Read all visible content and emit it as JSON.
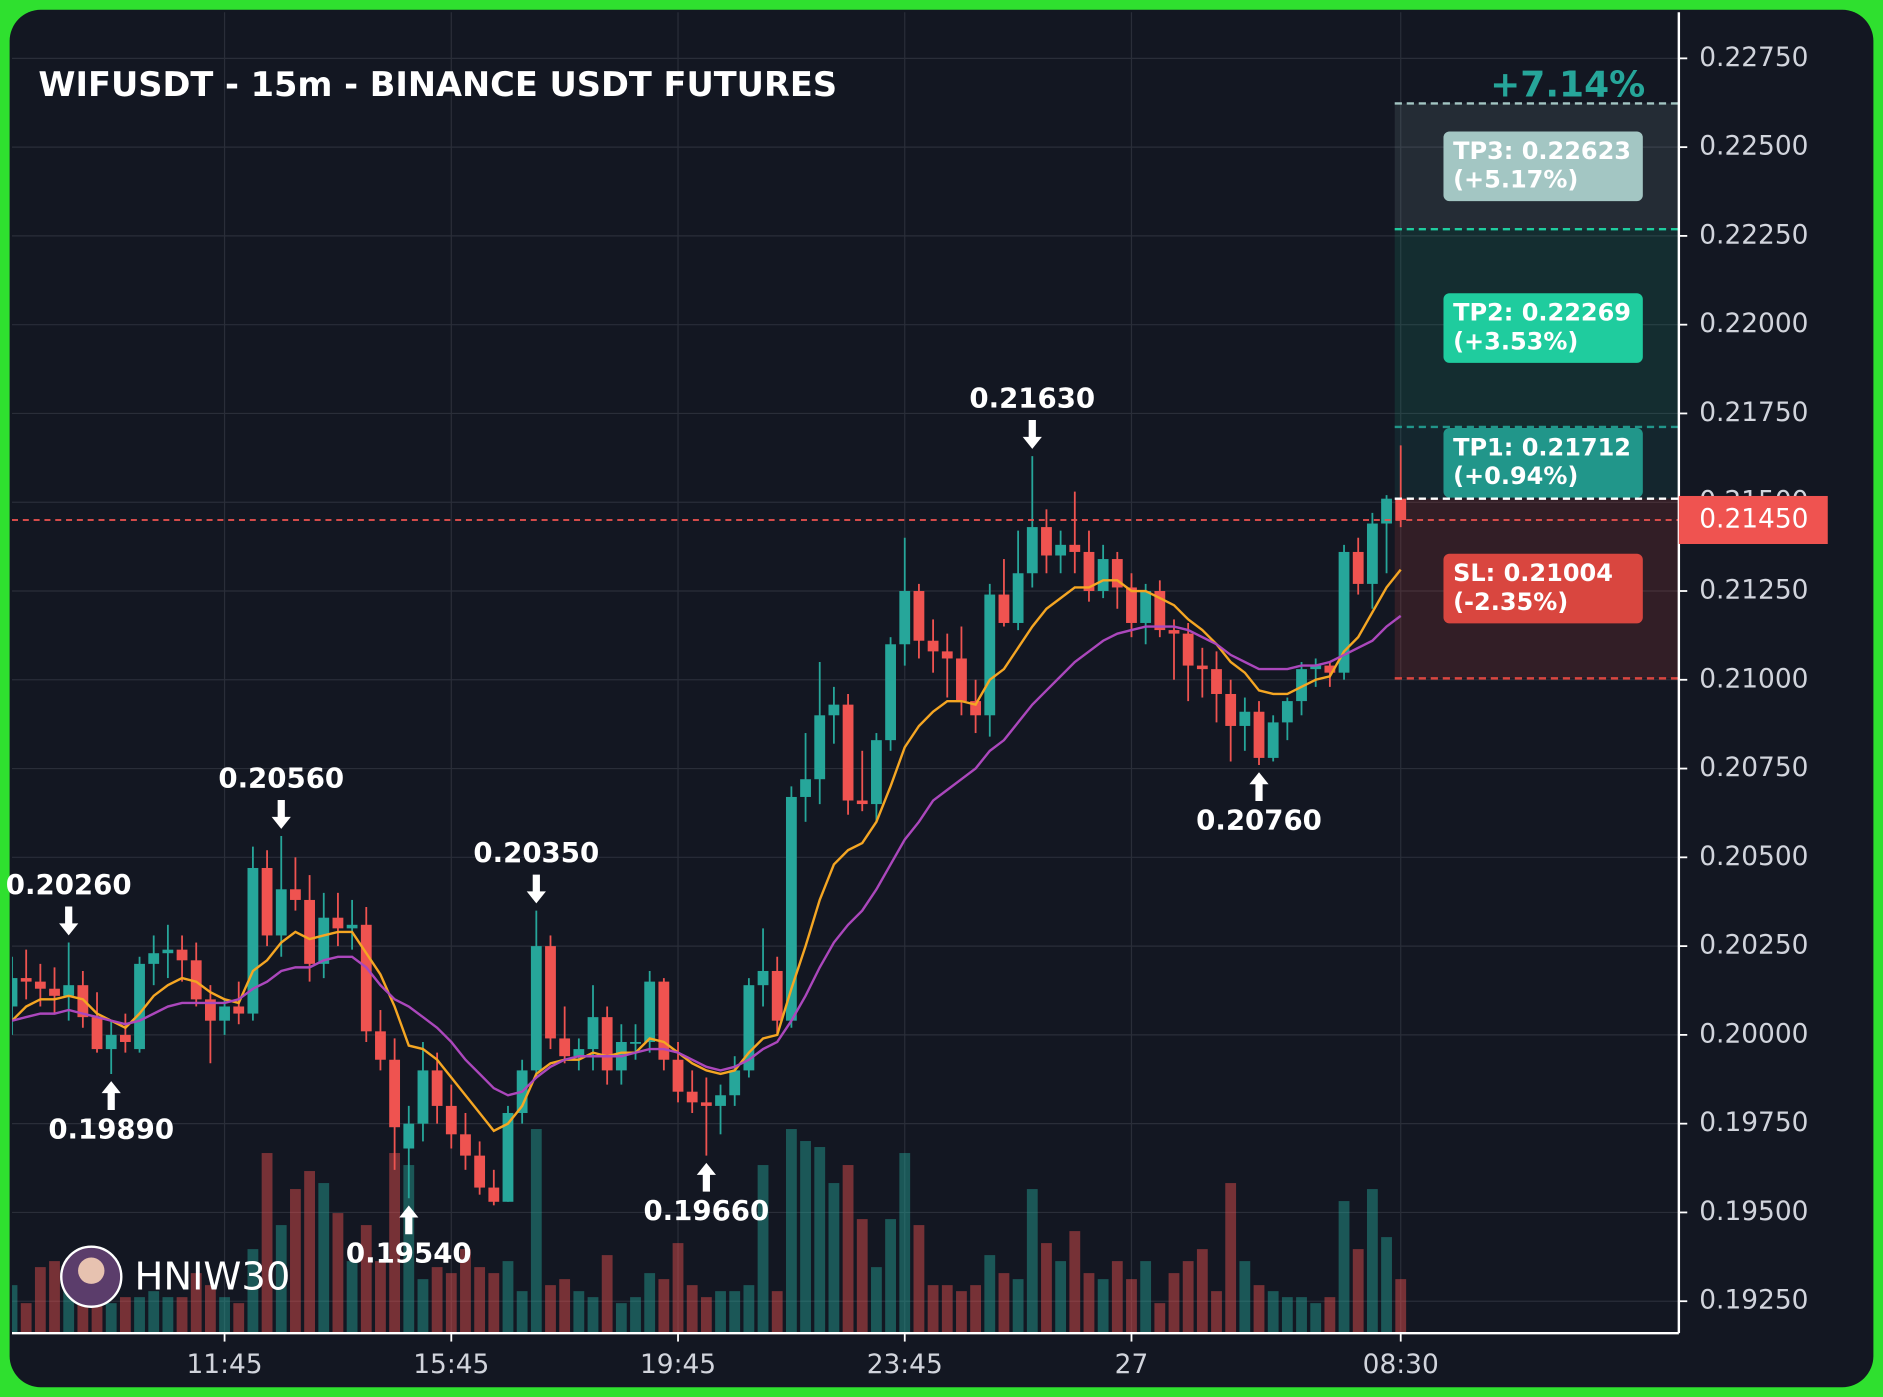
{
  "chart_data": {
    "type": "candlestick",
    "title": "WIFUSDT - 15m - BINANCE USDT FUTURES",
    "categories": [
      null,
      null,
      null,
      null,
      null,
      null,
      null,
      null,
      null,
      null,
      null,
      null,
      null,
      null,
      null,
      "11:45",
      null,
      null,
      null,
      null,
      null,
      null,
      null,
      null,
      null,
      null,
      null,
      null,
      null,
      null,
      null,
      "15:45",
      null,
      null,
      null,
      null,
      null,
      null,
      null,
      null,
      null,
      null,
      null,
      null,
      null,
      null,
      null,
      "19:45",
      null,
      null,
      null,
      null,
      null,
      null,
      null,
      null,
      null,
      null,
      null,
      null,
      null,
      null,
      null,
      "23:45",
      null,
      null,
      null,
      null,
      null,
      null,
      null,
      null,
      null,
      null,
      null,
      null,
      null,
      null,
      null,
      "27",
      null,
      null,
      null,
      null,
      null,
      null,
      null,
      null,
      null,
      null,
      null,
      null,
      null,
      null,
      null,
      null,
      null,
      null,
      "08:30"
    ],
    "open": [
      0.2008,
      0.2016,
      0.2015,
      0.2013,
      0.2011,
      0.2014,
      0.2005,
      0.1996,
      0.2,
      0.1996,
      0.202,
      0.2023,
      0.2024,
      0.2021,
      0.201,
      0.2004,
      0.2008,
      0.2006,
      0.2047,
      0.2028,
      0.2041,
      0.2038,
      0.202,
      0.2033,
      0.203,
      0.2031,
      0.2001,
      0.1993,
      0.1968,
      0.1975,
      0.199,
      0.198,
      0.1972,
      0.1966,
      0.1957,
      0.1953,
      0.1978,
      0.199,
      0.2025,
      0.1999,
      0.1994,
      0.1996,
      0.2005,
      0.199,
      0.1998,
      0.1998,
      0.2015,
      0.1993,
      0.1984,
      0.1981,
      0.198,
      0.1983,
      0.199,
      0.2014,
      0.2018,
      0.2004,
      0.2067,
      0.2072,
      0.209,
      0.2093,
      0.2066,
      0.2065,
      0.2083,
      0.211,
      0.2125,
      0.2111,
      0.2108,
      0.2106,
      0.2094,
      0.209,
      0.2124,
      0.2116,
      0.213,
      0.2143,
      0.2135,
      0.2138,
      0.2136,
      0.2125,
      0.2134,
      0.2126,
      0.2116,
      0.2125,
      0.2114,
      0.2113,
      0.2104,
      0.2103,
      0.2096,
      0.2087,
      0.2091,
      0.2078,
      0.2088,
      0.2094,
      0.2103,
      0.2104,
      0.2102,
      0.2136,
      0.2127,
      0.2144,
      0.2151
    ],
    "high": [
      0.2022,
      0.2024,
      0.202,
      0.2019,
      0.2026,
      0.2018,
      0.2012,
      0.2004,
      0.2006,
      0.2022,
      0.2028,
      0.2031,
      0.2028,
      0.2026,
      0.2014,
      0.201,
      0.2015,
      0.2053,
      0.2052,
      0.2056,
      0.205,
      0.2045,
      0.204,
      0.204,
      0.2038,
      0.2036,
      0.2007,
      0.1999,
      0.198,
      0.1998,
      0.1995,
      0.1986,
      0.1978,
      0.197,
      0.1962,
      0.198,
      0.1993,
      0.2035,
      0.2028,
      0.2008,
      0.1999,
      0.2014,
      0.2008,
      0.2003,
      0.2003,
      0.2018,
      0.2016,
      0.1998,
      0.199,
      0.1988,
      0.1986,
      0.1994,
      0.2016,
      0.203,
      0.2022,
      0.207,
      0.2085,
      0.2105,
      0.2098,
      0.2096,
      0.208,
      0.2085,
      0.2112,
      0.214,
      0.2127,
      0.2117,
      0.2113,
      0.2115,
      0.21,
      0.2127,
      0.2134,
      0.2142,
      0.2163,
      0.2148,
      0.2142,
      0.2153,
      0.2142,
      0.2138,
      0.2136,
      0.213,
      0.2127,
      0.2128,
      0.2117,
      0.2116,
      0.2109,
      0.2108,
      0.21,
      0.2095,
      0.2094,
      0.209,
      0.2095,
      0.2105,
      0.2106,
      0.2105,
      0.2138,
      0.214,
      0.2147,
      0.2152,
      0.2166
    ],
    "low": [
      0.2,
      0.201,
      0.2008,
      0.2006,
      0.2004,
      0.2002,
      0.1995,
      0.1989,
      0.1995,
      0.1995,
      0.2014,
      0.2016,
      0.2015,
      0.2008,
      0.1992,
      0.2,
      0.2003,
      0.2004,
      0.2025,
      0.2022,
      0.2035,
      0.2015,
      0.2016,
      0.2025,
      0.2024,
      0.1998,
      0.199,
      0.1962,
      0.1954,
      0.197,
      0.1975,
      0.1968,
      0.1962,
      0.1955,
      0.1952,
      0.1953,
      0.1975,
      0.1988,
      0.1996,
      0.1992,
      0.199,
      0.199,
      0.1986,
      0.1986,
      0.1993,
      0.1995,
      0.199,
      0.1981,
      0.1978,
      0.1966,
      0.1972,
      0.198,
      0.1988,
      0.2008,
      0.2,
      0.2002,
      0.206,
      0.2065,
      0.2082,
      0.2062,
      0.2063,
      0.206,
      0.208,
      0.2104,
      0.2106,
      0.2102,
      0.2095,
      0.209,
      0.2085,
      0.2084,
      0.2115,
      0.2114,
      0.2126,
      0.213,
      0.213,
      0.213,
      0.2122,
      0.2123,
      0.212,
      0.2112,
      0.211,
      0.2112,
      0.21,
      0.2094,
      0.2095,
      0.2088,
      0.2077,
      0.208,
      0.2076,
      0.2077,
      0.2083,
      0.209,
      0.2098,
      0.2098,
      0.21,
      0.2124,
      0.212,
      0.213,
      0.2143
    ],
    "close": [
      0.2016,
      0.2015,
      0.2013,
      0.2011,
      0.2014,
      0.2005,
      0.1996,
      0.2,
      0.1998,
      0.202,
      0.2023,
      0.2024,
      0.2021,
      0.201,
      0.2004,
      0.2008,
      0.2006,
      0.2047,
      0.2028,
      0.2041,
      0.2038,
      0.202,
      0.2033,
      0.203,
      0.2031,
      0.2001,
      0.1993,
      0.1974,
      0.1975,
      0.199,
      0.198,
      0.1972,
      0.1966,
      0.1957,
      0.1953,
      0.1978,
      0.199,
      0.2025,
      0.1999,
      0.1994,
      0.1996,
      0.2005,
      0.199,
      0.1998,
      0.1998,
      0.2015,
      0.1993,
      0.1984,
      0.1981,
      0.198,
      0.1983,
      0.199,
      0.2014,
      0.2018,
      0.2004,
      0.2067,
      0.2072,
      0.209,
      0.2093,
      0.2066,
      0.2065,
      0.2083,
      0.211,
      0.2125,
      0.2111,
      0.2108,
      0.2106,
      0.2094,
      0.209,
      0.2124,
      0.2116,
      0.213,
      0.2143,
      0.2135,
      0.2138,
      0.2136,
      0.2125,
      0.2134,
      0.2126,
      0.2116,
      0.2125,
      0.2114,
      0.2113,
      0.2104,
      0.2103,
      0.2096,
      0.2087,
      0.2091,
      0.2078,
      0.2088,
      0.2094,
      0.2103,
      0.2104,
      0.2102,
      0.2136,
      0.2127,
      0.2144,
      0.2151,
      0.2145
    ],
    "volume": [
      40,
      25,
      55,
      60,
      45,
      65,
      30,
      25,
      30,
      30,
      35,
      30,
      30,
      50,
      40,
      30,
      25,
      70,
      150,
      90,
      120,
      135,
      125,
      100,
      60,
      90,
      60,
      150,
      140,
      45,
      55,
      50,
      70,
      55,
      50,
      60,
      35,
      170,
      40,
      45,
      35,
      30,
      65,
      25,
      30,
      50,
      45,
      75,
      40,
      30,
      35,
      35,
      40,
      140,
      35,
      170,
      160,
      155,
      125,
      140,
      95,
      55,
      95,
      150,
      90,
      40,
      40,
      35,
      40,
      65,
      50,
      45,
      120,
      75,
      60,
      85,
      50,
      45,
      60,
      45,
      60,
      25,
      50,
      60,
      70,
      35,
      125,
      60,
      40,
      35,
      30,
      30,
      25,
      30,
      110,
      70,
      120,
      80,
      45
    ],
    "up_color": "#26a69a",
    "down_color": "#ef5350",
    "lines": [
      {
        "color": "#f5a623",
        "values": [
          0.2004,
          0.2008,
          0.201,
          0.201,
          0.2011,
          0.201,
          0.2006,
          0.2004,
          0.2002,
          0.2006,
          0.2011,
          0.2014,
          0.2016,
          0.2015,
          0.2012,
          0.201,
          0.2009,
          0.2018,
          0.2021,
          0.2026,
          0.2029,
          0.2027,
          0.2028,
          0.2029,
          0.2029,
          0.2023,
          0.2017,
          0.2008,
          0.1997,
          0.1996,
          0.1993,
          0.1988,
          0.1983,
          0.1978,
          0.1973,
          0.1975,
          0.198,
          0.1989,
          0.1992,
          0.1993,
          0.1993,
          0.1995,
          0.1994,
          0.1995,
          0.1995,
          0.1999,
          0.1998,
          0.1995,
          0.1992,
          0.199,
          0.1989,
          0.199,
          0.1995,
          0.1999,
          0.2,
          0.2013,
          0.2025,
          0.2038,
          0.2048,
          0.2052,
          0.2054,
          0.206,
          0.207,
          0.2081,
          0.2087,
          0.2091,
          0.2094,
          0.2094,
          0.2093,
          0.21,
          0.2103,
          0.2109,
          0.2115,
          0.212,
          0.2123,
          0.2126,
          0.2126,
          0.2128,
          0.2128,
          0.2125,
          0.2125,
          0.2123,
          0.2121,
          0.2117,
          0.2114,
          0.211,
          0.2105,
          0.2102,
          0.2097,
          0.2096,
          0.2096,
          0.2098,
          0.21,
          0.2101,
          0.2108,
          0.2112,
          0.2119,
          0.2126,
          0.2131
        ]
      },
      {
        "color": "#ab47bc",
        "values": [
          0.2004,
          0.2005,
          0.2006,
          0.2006,
          0.2007,
          0.2006,
          0.2005,
          0.2004,
          0.2003,
          0.2004,
          0.2006,
          0.2008,
          0.2009,
          0.2009,
          0.2009,
          0.2009,
          0.201,
          0.2013,
          0.2015,
          0.2018,
          0.2019,
          0.2019,
          0.2021,
          0.2022,
          0.2022,
          0.2019,
          0.2014,
          0.201,
          0.2008,
          0.2005,
          0.2002,
          0.1998,
          0.1993,
          0.1989,
          0.1985,
          0.1983,
          0.1984,
          0.1988,
          0.1991,
          0.1993,
          0.1994,
          0.1994,
          0.1994,
          0.1994,
          0.1995,
          0.1996,
          0.1996,
          0.1995,
          0.1993,
          0.1991,
          0.199,
          0.1991,
          0.1993,
          0.1996,
          0.1998,
          0.2004,
          0.2011,
          0.2019,
          0.2026,
          0.2031,
          0.2035,
          0.2041,
          0.2048,
          0.2055,
          0.206,
          0.2066,
          0.2069,
          0.2072,
          0.2075,
          0.208,
          0.2083,
          0.2088,
          0.2093,
          0.2097,
          0.2101,
          0.2105,
          0.2108,
          0.2111,
          0.2113,
          0.2114,
          0.2115,
          0.2115,
          0.2115,
          0.2114,
          0.2112,
          0.211,
          0.2107,
          0.2105,
          0.2103,
          0.2103,
          0.2103,
          0.2104,
          0.2104,
          0.2105,
          0.2107,
          0.2109,
          0.2111,
          0.2115,
          0.2118
        ]
      }
    ],
    "ylim": [
      0.1916,
      0.2288
    ],
    "yticks": [
      {
        "value": 0.1925,
        "label": "0.19250"
      },
      {
        "value": 0.195,
        "label": "0.19500"
      },
      {
        "value": 0.1975,
        "label": "0.19750"
      },
      {
        "value": 0.2,
        "label": "0.20000"
      },
      {
        "value": 0.2025,
        "label": "0.20250"
      },
      {
        "value": 0.205,
        "label": "0.20500"
      },
      {
        "value": 0.2075,
        "label": "0.20750"
      },
      {
        "value": 0.21,
        "label": "0.21000"
      },
      {
        "value": 0.2125,
        "label": "0.21250"
      },
      {
        "value": 0.215,
        "label": "0.21500"
      },
      {
        "value": 0.2175,
        "label": "0.21750"
      },
      {
        "value": 0.22,
        "label": "0.22000"
      },
      {
        "value": 0.2225,
        "label": "0.22250"
      },
      {
        "value": 0.225,
        "label": "0.22500"
      },
      {
        "value": 0.2275,
        "label": "0.22750"
      }
    ],
    "grid": true,
    "annotations": [
      {
        "label": "0.20260",
        "value": 0.2026
      },
      {
        "label": "0.19890",
        "value": 0.1989
      },
      {
        "label": "0.20560",
        "value": 0.2056
      },
      {
        "label": "0.19540",
        "value": 0.1954
      },
      {
        "label": "0.20350",
        "value": 0.2035
      },
      {
        "label": "0.19660",
        "value": 0.1966
      },
      {
        "label": "0.21630",
        "value": 0.2163
      },
      {
        "label": "0.20760",
        "value": 0.2076
      }
    ],
    "current_price": {
      "value": 0.2145,
      "label": "0.21450"
    },
    "trade": {
      "entry": 0.2151,
      "change_label": "+7.14%",
      "levels": [
        {
          "label": "TP3: 0.22623",
          "change": "(+5.17%)",
          "value": 0.22623,
          "color": "#a3c6c3"
        },
        {
          "label": "TP2: 0.22269",
          "change": "(+3.53%)",
          "value": 0.22269,
          "color": "#1fcc9e"
        },
        {
          "label": "TP1: 0.21712",
          "change": "(+0.94%)",
          "value": 0.21712,
          "color": "#21968a"
        },
        {
          "label": "SL: 0.21004",
          "change": "(-2.35%)",
          "value": 0.21004,
          "color": "#d9463f"
        }
      ]
    },
    "watermark": "HNIW30"
  }
}
